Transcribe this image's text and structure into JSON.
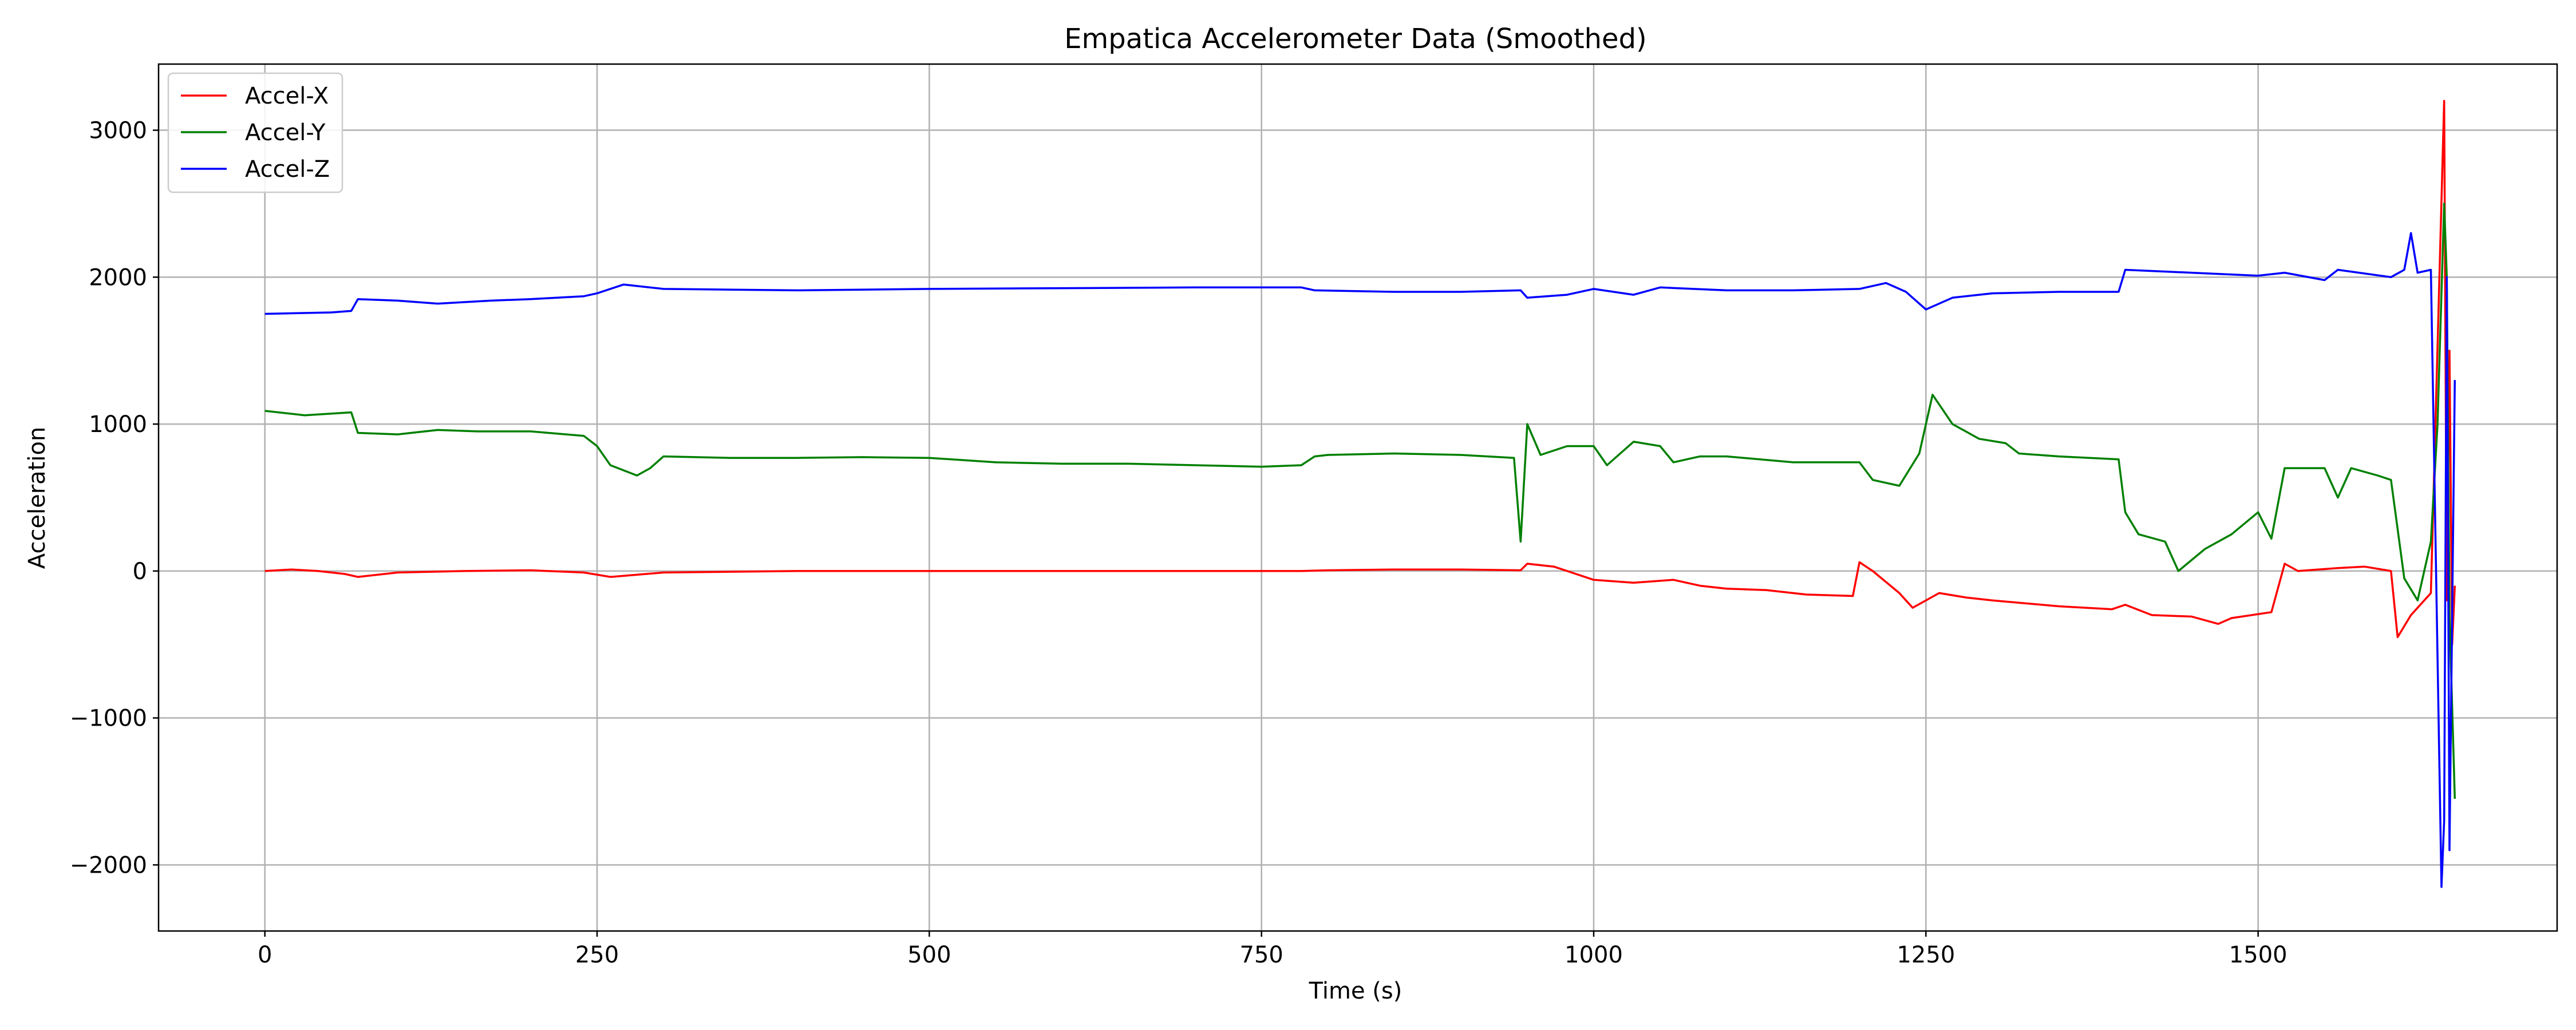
{
  "chart_data": {
    "type": "line",
    "title": "Empatica Accelerometer Data (Smoothed)",
    "xlabel": "Time (s)",
    "ylabel": "Acceleration",
    "xlim": [
      -80,
      1725
    ],
    "ylim": [
      -2450,
      3450
    ],
    "xticks": [
      0,
      250,
      500,
      750,
      1000,
      1250,
      1500
    ],
    "yticks": [
      -2000,
      -1000,
      0,
      1000,
      2000,
      3000
    ],
    "grid": true,
    "legend_position": "top-left",
    "series": [
      {
        "name": "Accel-X",
        "color": "#ff0000",
        "points": [
          [
            0,
            0
          ],
          [
            20,
            10
          ],
          [
            40,
            0
          ],
          [
            60,
            -20
          ],
          [
            70,
            -40
          ],
          [
            100,
            -10
          ],
          [
            150,
            0
          ],
          [
            200,
            5
          ],
          [
            240,
            -10
          ],
          [
            260,
            -40
          ],
          [
            300,
            -10
          ],
          [
            400,
            0
          ],
          [
            500,
            0
          ],
          [
            600,
            0
          ],
          [
            700,
            0
          ],
          [
            780,
            0
          ],
          [
            800,
            5
          ],
          [
            850,
            10
          ],
          [
            900,
            10
          ],
          [
            945,
            5
          ],
          [
            950,
            50
          ],
          [
            970,
            30
          ],
          [
            980,
            0
          ],
          [
            1000,
            -60
          ],
          [
            1030,
            -80
          ],
          [
            1060,
            -60
          ],
          [
            1080,
            -100
          ],
          [
            1100,
            -120
          ],
          [
            1130,
            -130
          ],
          [
            1160,
            -160
          ],
          [
            1195,
            -170
          ],
          [
            1200,
            60
          ],
          [
            1210,
            0
          ],
          [
            1230,
            -150
          ],
          [
            1240,
            -250
          ],
          [
            1260,
            -150
          ],
          [
            1280,
            -180
          ],
          [
            1300,
            -200
          ],
          [
            1350,
            -240
          ],
          [
            1390,
            -260
          ],
          [
            1400,
            -230
          ],
          [
            1420,
            -300
          ],
          [
            1450,
            -310
          ],
          [
            1470,
            -360
          ],
          [
            1480,
            -320
          ],
          [
            1510,
            -280
          ],
          [
            1520,
            50
          ],
          [
            1530,
            0
          ],
          [
            1560,
            20
          ],
          [
            1580,
            30
          ],
          [
            1600,
            0
          ],
          [
            1605,
            -450
          ],
          [
            1615,
            -300
          ],
          [
            1630,
            -150
          ],
          [
            1640,
            3200
          ],
          [
            1642,
            -200
          ],
          [
            1644,
            1500
          ],
          [
            1646,
            -500
          ],
          [
            1648,
            -100
          ]
        ]
      },
      {
        "name": "Accel-Y",
        "color": "#008000",
        "points": [
          [
            0,
            1090
          ],
          [
            30,
            1060
          ],
          [
            65,
            1080
          ],
          [
            70,
            940
          ],
          [
            100,
            930
          ],
          [
            130,
            960
          ],
          [
            160,
            950
          ],
          [
            200,
            950
          ],
          [
            240,
            920
          ],
          [
            250,
            850
          ],
          [
            260,
            720
          ],
          [
            280,
            650
          ],
          [
            290,
            700
          ],
          [
            300,
            780
          ],
          [
            350,
            770
          ],
          [
            400,
            770
          ],
          [
            450,
            775
          ],
          [
            500,
            770
          ],
          [
            550,
            740
          ],
          [
            600,
            730
          ],
          [
            650,
            730
          ],
          [
            700,
            720
          ],
          [
            750,
            710
          ],
          [
            780,
            720
          ],
          [
            790,
            780
          ],
          [
            800,
            790
          ],
          [
            850,
            800
          ],
          [
            900,
            790
          ],
          [
            940,
            770
          ],
          [
            945,
            200
          ],
          [
            950,
            1000
          ],
          [
            960,
            790
          ],
          [
            980,
            850
          ],
          [
            1000,
            850
          ],
          [
            1010,
            720
          ],
          [
            1030,
            880
          ],
          [
            1050,
            850
          ],
          [
            1060,
            740
          ],
          [
            1080,
            780
          ],
          [
            1100,
            780
          ],
          [
            1150,
            740
          ],
          [
            1200,
            740
          ],
          [
            1210,
            620
          ],
          [
            1230,
            580
          ],
          [
            1245,
            800
          ],
          [
            1255,
            1200
          ],
          [
            1270,
            1000
          ],
          [
            1290,
            900
          ],
          [
            1310,
            870
          ],
          [
            1320,
            800
          ],
          [
            1350,
            780
          ],
          [
            1395,
            760
          ],
          [
            1400,
            400
          ],
          [
            1410,
            250
          ],
          [
            1430,
            200
          ],
          [
            1440,
            0
          ],
          [
            1460,
            150
          ],
          [
            1480,
            250
          ],
          [
            1500,
            400
          ],
          [
            1510,
            220
          ],
          [
            1520,
            700
          ],
          [
            1550,
            700
          ],
          [
            1560,
            500
          ],
          [
            1570,
            700
          ],
          [
            1590,
            650
          ],
          [
            1600,
            620
          ],
          [
            1610,
            -50
          ],
          [
            1620,
            -200
          ],
          [
            1630,
            200
          ],
          [
            1635,
            1000
          ],
          [
            1640,
            2500
          ],
          [
            1642,
            2000
          ],
          [
            1644,
            -300
          ],
          [
            1648,
            -1550
          ]
        ]
      },
      {
        "name": "Accel-Z",
        "color": "#0000ff",
        "points": [
          [
            0,
            1750
          ],
          [
            50,
            1760
          ],
          [
            65,
            1770
          ],
          [
            70,
            1850
          ],
          [
            100,
            1840
          ],
          [
            130,
            1820
          ],
          [
            170,
            1840
          ],
          [
            200,
            1850
          ],
          [
            240,
            1870
          ],
          [
            250,
            1890
          ],
          [
            270,
            1950
          ],
          [
            300,
            1920
          ],
          [
            400,
            1910
          ],
          [
            500,
            1920
          ],
          [
            600,
            1925
          ],
          [
            700,
            1930
          ],
          [
            780,
            1930
          ],
          [
            790,
            1910
          ],
          [
            850,
            1900
          ],
          [
            900,
            1900
          ],
          [
            945,
            1910
          ],
          [
            950,
            1860
          ],
          [
            980,
            1880
          ],
          [
            1000,
            1920
          ],
          [
            1030,
            1880
          ],
          [
            1050,
            1930
          ],
          [
            1100,
            1910
          ],
          [
            1150,
            1910
          ],
          [
            1200,
            1920
          ],
          [
            1220,
            1960
          ],
          [
            1235,
            1900
          ],
          [
            1250,
            1780
          ],
          [
            1270,
            1860
          ],
          [
            1300,
            1890
          ],
          [
            1350,
            1900
          ],
          [
            1395,
            1900
          ],
          [
            1400,
            2050
          ],
          [
            1450,
            2030
          ],
          [
            1500,
            2010
          ],
          [
            1520,
            2030
          ],
          [
            1550,
            1980
          ],
          [
            1560,
            2050
          ],
          [
            1600,
            2000
          ],
          [
            1610,
            2050
          ],
          [
            1615,
            2300
          ],
          [
            1620,
            2030
          ],
          [
            1630,
            2050
          ],
          [
            1638,
            -2150
          ],
          [
            1640,
            -1700
          ],
          [
            1642,
            2000
          ],
          [
            1644,
            -1900
          ],
          [
            1648,
            1300
          ]
        ]
      }
    ]
  }
}
